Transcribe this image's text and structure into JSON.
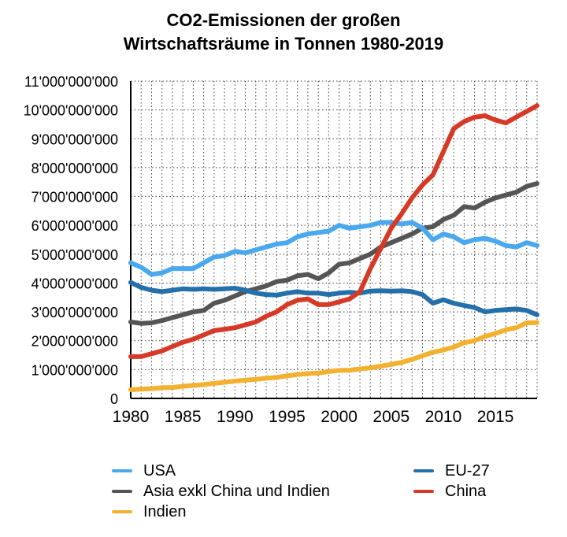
{
  "chart_data": {
    "type": "line",
    "title_line1": "CO2-Emissionen der großen",
    "title_line2": "Wirtschaftsräume in Tonnen 1980-2019",
    "xlabel": "",
    "ylabel": "",
    "xlim": [
      1980,
      2019
    ],
    "ylim": [
      0,
      11000000000
    ],
    "grid": true,
    "x_ticks": [
      "1980",
      "1985",
      "1990",
      "1995",
      "2000",
      "2005",
      "2010",
      "2015"
    ],
    "y_ticks": [
      "0",
      "1'000'000'000",
      "2'000'000'000",
      "3'000'000'000",
      "4'000'000'000",
      "5'000'000'000",
      "6'000'000'000",
      "7'000'000'000",
      "8'000'000'000",
      "9'000'000'000",
      "10'000'000'000",
      "11'000'000'000"
    ],
    "x": [
      1980,
      1981,
      1982,
      1983,
      1984,
      1985,
      1986,
      1987,
      1988,
      1989,
      1990,
      1991,
      1992,
      1993,
      1994,
      1995,
      1996,
      1997,
      1998,
      1999,
      2000,
      2001,
      2002,
      2003,
      2004,
      2005,
      2006,
      2007,
      2008,
      2009,
      2010,
      2011,
      2012,
      2013,
      2014,
      2015,
      2016,
      2017,
      2018,
      2019
    ],
    "series": [
      {
        "name": "USA",
        "color": "#4aa8ee",
        "values": [
          4.7,
          4.55,
          4.3,
          4.35,
          4.5,
          4.5,
          4.5,
          4.7,
          4.9,
          4.95,
          5.1,
          5.05,
          5.15,
          5.25,
          5.35,
          5.4,
          5.6,
          5.7,
          5.75,
          5.8,
          6.0,
          5.9,
          5.95,
          6.0,
          6.1,
          6.1,
          6.05,
          6.1,
          5.9,
          5.5,
          5.7,
          5.6,
          5.4,
          5.5,
          5.55,
          5.45,
          5.3,
          5.25,
          5.4,
          5.3
        ]
      },
      {
        "name": "Asia exkl China und Indien",
        "color": "#555555",
        "values": [
          2.65,
          2.6,
          2.62,
          2.7,
          2.8,
          2.9,
          3.0,
          3.05,
          3.3,
          3.4,
          3.55,
          3.7,
          3.8,
          3.9,
          4.05,
          4.1,
          4.25,
          4.3,
          4.15,
          4.35,
          4.65,
          4.7,
          4.85,
          5.0,
          5.25,
          5.4,
          5.55,
          5.7,
          5.9,
          5.95,
          6.2,
          6.35,
          6.65,
          6.6,
          6.8,
          6.95,
          7.05,
          7.15,
          7.35,
          7.45
        ]
      },
      {
        "name": "Indien",
        "color": "#f3b130",
        "values": [
          0.3,
          0.32,
          0.34,
          0.37,
          0.38,
          0.42,
          0.45,
          0.48,
          0.52,
          0.56,
          0.6,
          0.63,
          0.66,
          0.7,
          0.73,
          0.78,
          0.83,
          0.86,
          0.88,
          0.93,
          0.97,
          0.98,
          1.02,
          1.06,
          1.12,
          1.18,
          1.25,
          1.35,
          1.48,
          1.6,
          1.68,
          1.78,
          1.93,
          2.0,
          2.15,
          2.25,
          2.38,
          2.45,
          2.62,
          2.63
        ]
      },
      {
        "name": "EU-27",
        "color": "#2570aa",
        "values": [
          4.02,
          3.85,
          3.75,
          3.7,
          3.75,
          3.8,
          3.78,
          3.8,
          3.78,
          3.8,
          3.82,
          3.75,
          3.65,
          3.6,
          3.58,
          3.65,
          3.7,
          3.65,
          3.65,
          3.6,
          3.65,
          3.68,
          3.65,
          3.72,
          3.73,
          3.72,
          3.73,
          3.7,
          3.6,
          3.3,
          3.42,
          3.3,
          3.22,
          3.15,
          3.0,
          3.05,
          3.08,
          3.1,
          3.05,
          2.9
        ]
      },
      {
        "name": "China",
        "color": "#d63a27",
        "values": [
          1.45,
          1.45,
          1.55,
          1.65,
          1.8,
          1.95,
          2.05,
          2.2,
          2.35,
          2.4,
          2.45,
          2.55,
          2.65,
          2.85,
          3.0,
          3.25,
          3.4,
          3.45,
          3.25,
          3.25,
          3.35,
          3.45,
          3.7,
          4.5,
          5.2,
          5.9,
          6.4,
          6.95,
          7.4,
          7.75,
          8.55,
          9.35,
          9.6,
          9.75,
          9.8,
          9.65,
          9.55,
          9.75,
          9.95,
          10.15
        ]
      }
    ],
    "legend": [
      {
        "label": "USA",
        "color": "#4aa8ee"
      },
      {
        "label": "EU-27",
        "color": "#2570aa"
      },
      {
        "label": "Asia exkl China und Indien",
        "color": "#555555"
      },
      {
        "label": "China",
        "color": "#d63a27"
      },
      {
        "label": "Indien",
        "color": "#f3b130"
      }
    ]
  }
}
